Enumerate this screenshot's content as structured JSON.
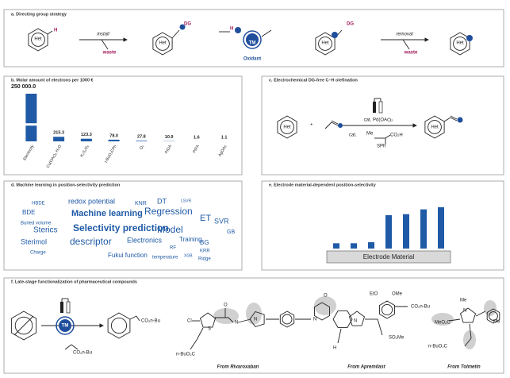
{
  "panel_a": {
    "title": "a. Directing group strategy",
    "het": "Het",
    "h": "H",
    "install": "install",
    "waste": "waste",
    "dg": "DG",
    "tm": "TM",
    "oxidant": "Oxidant",
    "removal": "removal"
  },
  "chart_data": [
    {
      "type": "bar",
      "title": "b. Molar amount of electrons per 1000 €",
      "categories": [
        "Electricity",
        "Cu(OAc)₂·H₂O",
        "K₂S₂O₈",
        "t-BuO₂CPh",
        "O₂",
        "PIDA",
        "PIFA",
        "AgOAc"
      ],
      "values": [
        250000,
        215.3,
        123.3,
        78,
        27.8,
        10.9,
        1.6,
        1.1
      ],
      "value_labels": [
        "250 000.0",
        "215.3",
        "123.3",
        "78.0",
        "27.8",
        "10.9",
        "1.6",
        "1.1"
      ],
      "color": "#1f5aa6",
      "broken_axis": true
    },
    {
      "type": "bar",
      "title": "e. Electrode material-dependent position-selectivity",
      "values": [
        1,
        1,
        1.2,
        6.3,
        6.5,
        7.4,
        7.8
      ],
      "ylim": [
        0,
        9
      ],
      "color": "#1f5aa6",
      "xlabel": "Electrode Material"
    }
  ],
  "panel_c": {
    "title": "c. Electrochemical DG-free C–H olefination",
    "plus": "+",
    "reagent": "cat. Pd(OAc)₂",
    "cat": "cat.",
    "acid": "CO₂H",
    "sph": "SPh",
    "me": "Me"
  },
  "panel_d": {
    "title": "d. Machine learning in position-selectivity prediction",
    "words": [
      "HBDE",
      "redox potential",
      "KNR",
      "DT",
      "LSVR",
      "BDE",
      "Machine learning",
      "Regression",
      "ET",
      "SVR",
      "Buried volume",
      "Sterics",
      "Selectivity prediction",
      "Model",
      "GB",
      "Sterimol",
      "descriptor",
      "Electronics",
      "Training",
      "BG",
      "RF",
      "Charge",
      "Fukui function",
      "temperature",
      "XGB",
      "KRR",
      "Ridge"
    ]
  },
  "panel_f": {
    "title": "f. Late-stage functionalization of pharmaceutical compounds",
    "ester": "CO₂n-Bu",
    "ester_rev": "n-BuO₂C",
    "cl": "Cl",
    "s": "S",
    "o": "O",
    "n": "N",
    "nh": "H",
    "eto": "EtO",
    "ome": "OMe",
    "so2me": "SO₂Me",
    "meo2c": "MeO₂C",
    "me": "Me",
    "from": [
      "From Rivaroxaban",
      "From Apremilast",
      "From Tolmetin"
    ]
  }
}
